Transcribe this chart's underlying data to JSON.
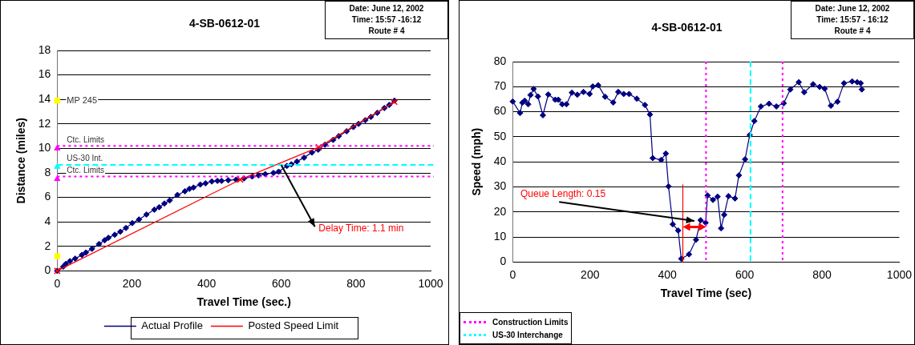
{
  "chart_data": [
    {
      "type": "line",
      "title": "4-SB-0612-01",
      "subtitle": "Date: June 12, 2002\nTime: 15:57 -16:12\nRoute # 4",
      "xlabel": "Travel Time (sec.)",
      "ylabel": "Distance (miles)",
      "xlim": [
        0,
        1000
      ],
      "xticks": [
        0,
        200,
        400,
        600,
        800,
        1000
      ],
      "ylim": [
        0,
        18
      ],
      "yticks": [
        0,
        2,
        4,
        6,
        8,
        10,
        12,
        14,
        16,
        18
      ],
      "grid": "y",
      "legend": "bottom",
      "annotations": [
        {
          "text": "MP 245",
          "x": 0,
          "y": 13.9
        },
        "Delay Time: 1.1 min"
      ],
      "series": [
        {
          "name": "Actual Profile",
          "color": "#000080",
          "marker": "diamond",
          "x": [
            0,
            16,
            23,
            34,
            48,
            66,
            77,
            93,
            112,
            127,
            137,
            154,
            169,
            184,
            201,
            219,
            239,
            260,
            273,
            287,
            301,
            322,
            342,
            354,
            365,
            383,
            397,
            414,
            429,
            440,
            458,
            479,
            500,
            522,
            539,
            557,
            579,
            593,
            615,
            627,
            642,
            661,
            682,
            699,
            717,
            739,
            754,
            775,
            793,
            807,
            825,
            840,
            857,
            876,
            889,
            903
          ],
          "values": [
            0,
            0.34,
            0.57,
            0.8,
            1.0,
            1.3,
            1.5,
            1.8,
            2.2,
            2.5,
            2.7,
            2.95,
            3.2,
            3.5,
            3.9,
            4.2,
            4.6,
            5.0,
            5.2,
            5.5,
            5.75,
            6.2,
            6.5,
            6.7,
            6.8,
            7.05,
            7.15,
            7.3,
            7.35,
            7.35,
            7.4,
            7.45,
            7.55,
            7.7,
            7.8,
            7.9,
            8.0,
            8.1,
            8.57,
            8.7,
            8.93,
            9.25,
            9.66,
            9.9,
            10.3,
            10.7,
            11.0,
            11.4,
            11.75,
            12.0,
            12.3,
            12.57,
            12.9,
            13.3,
            13.55,
            13.9
          ]
        },
        {
          "name": "Posted Speed Limit",
          "color": "#ff0000",
          "marker": "cross",
          "x": [
            0,
            490,
            700,
            903
          ],
          "values": [
            0,
            7.45,
            10.1,
            13.8
          ]
        },
        {
          "type": "scatter",
          "color": "#ffff00",
          "marker": "square",
          "x": [
            0,
            0
          ],
          "values": [
            13.9,
            1.2
          ]
        },
        {
          "type": "scatter",
          "color": "#ff00ff",
          "marker": "triangle",
          "x": [
            0,
            0
          ],
          "values": [
            10,
            7.5
          ]
        },
        {
          "type": "scatter",
          "color": "#00ffff",
          "marker": "triangle",
          "x": [
            0
          ],
          "values": [
            8.5
          ]
        }
      ],
      "ref_lines": [
        {
          "axis": "y",
          "value": 10.2,
          "label": "Ctc. Limits",
          "color": "#ff00ff",
          "line_style": "dotted"
        },
        {
          "axis": "y",
          "value": 8.65,
          "label": "US-30 Int.",
          "color": "#00ffff",
          "line_style": "dashed"
        },
        {
          "axis": "y",
          "value": 7.7,
          "label": "Ctc. Limits",
          "color": "#ff00ff",
          "line_style": "dotted"
        }
      ]
    },
    {
      "type": "line",
      "title": "4-SB-0612-01",
      "subtitle": "Date: June 12, 2002\nTime: 15:57 - 16:12\nRoute # 4",
      "xlabel": "Travel Time (sec)",
      "ylabel": "Speed (mph)",
      "xlim": [
        0,
        1000
      ],
      "xticks": [
        0,
        200,
        400,
        600,
        800,
        1000
      ],
      "ylim": [
        0,
        80
      ],
      "yticks": [
        0,
        10,
        20,
        30,
        40,
        50,
        60,
        70,
        80
      ],
      "grid": "y",
      "legend": "bottom left",
      "annotations": [
        "Queue Length: 0.15"
      ],
      "series": [
        {
          "color": "#000080",
          "marker": "diamond",
          "x": [
            0,
            19,
            25,
            31,
            40,
            46,
            54,
            65,
            78,
            92,
            110,
            118,
            128,
            139,
            153,
            167,
            183,
            199,
            207,
            221,
            239,
            260,
            273,
            287,
            301,
            321,
            342,
            355,
            362,
            384,
            396,
            403,
            414,
            428,
            436,
            456,
            474,
            486,
            499,
            504,
            518,
            530,
            539,
            547,
            558,
            575,
            585,
            601,
            613,
            625,
            642,
            663,
            682,
            701,
            718,
            740,
            754,
            777,
            794,
            807,
            823,
            840,
            857,
            878,
            891,
            900,
            903
          ],
          "values": [
            64.1,
            59.5,
            63.6,
            64.4,
            63.0,
            66.7,
            69.1,
            66.1,
            58.6,
            66.9,
            64.8,
            64.8,
            63.0,
            63.0,
            67.6,
            66.8,
            67.9,
            67.1,
            70.1,
            70.6,
            66.0,
            63.7,
            67.9,
            67.1,
            67.1,
            65.2,
            62.7,
            58.9,
            41.5,
            40.8,
            43.3,
            30.2,
            15.1,
            12.6,
            1.3,
            3.1,
            8.9,
            16.7,
            15.7,
            26.6,
            24.8,
            26.1,
            13.5,
            18.9,
            26.3,
            25.4,
            34.6,
            41.0,
            50.7,
            56.3,
            62.1,
            63.2,
            62.1,
            63.4,
            68.9,
            71.8,
            67.8,
            71.0,
            69.9,
            69.2,
            62.4,
            64.0,
            71.4,
            72.1,
            71.8,
            71.4,
            68.9
          ]
        },
        {
          "color": "#ff0000",
          "marker": "none",
          "x": [
            440,
            440
          ],
          "values": [
            0,
            31
          ]
        }
      ],
      "ref_lines": [
        {
          "axis": "x",
          "value": 500,
          "label": "Construction Limits",
          "color": "#ff00ff",
          "line_style": "dotted"
        },
        {
          "axis": "x",
          "value": 615,
          "label": "US-30 Interchange",
          "color": "#00ffff",
          "line_style": "dashed"
        },
        {
          "axis": "x",
          "value": 698,
          "color": "#ff00ff",
          "line_style": "dotted"
        }
      ]
    }
  ]
}
